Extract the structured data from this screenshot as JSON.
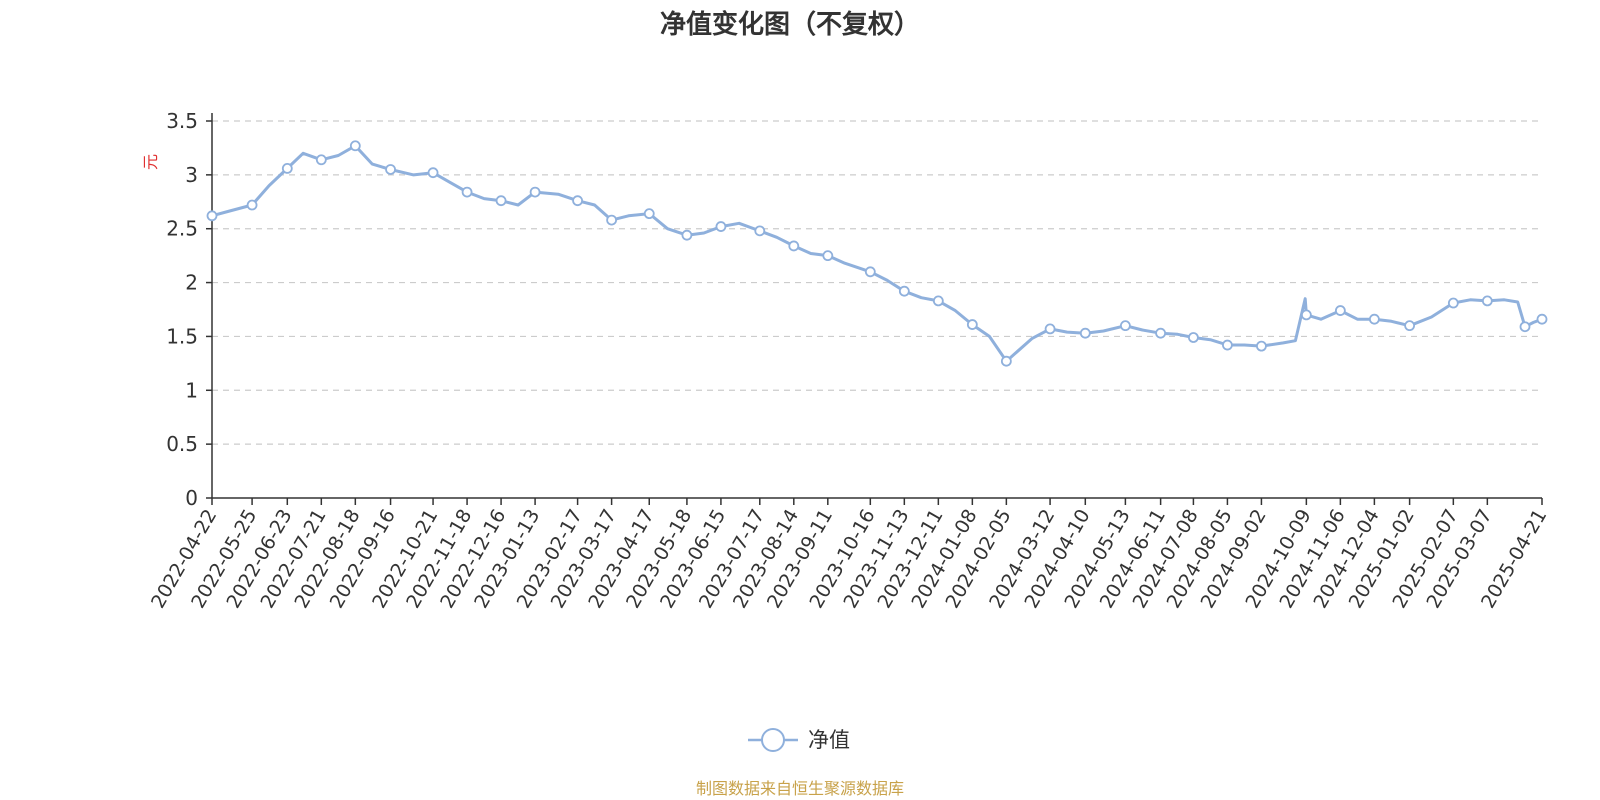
{
  "chart_data": {
    "type": "line",
    "title": "净值变化图（不复权）",
    "ylabel": "元",
    "ylim": [
      0,
      3.5
    ],
    "yticks": [
      "0",
      "0.5",
      "1",
      "1.5",
      "2",
      "2.5",
      "3",
      "3.5"
    ],
    "x_tick_labels": [
      "2022-04-22",
      "2022-05-25",
      "2022-06-23",
      "2022-07-21",
      "2022-08-18",
      "2022-09-16",
      "2022-10-21",
      "2022-11-18",
      "2022-12-16",
      "2023-01-13",
      "2023-02-17",
      "2023-03-17",
      "2023-04-17",
      "2023-05-18",
      "2023-06-15",
      "2023-07-17",
      "2023-08-14",
      "2023-09-11",
      "2023-10-16",
      "2023-11-13",
      "2023-12-11",
      "2024-01-08",
      "2024-02-05",
      "2024-03-12",
      "2024-04-10",
      "2024-05-13",
      "2024-06-11",
      "2024-07-08",
      "2024-08-05",
      "2024-09-02",
      "2024-10-09",
      "2024-11-06",
      "2024-12-04",
      "2025-01-02",
      "2025-02-07",
      "2025-03-07",
      "2025-04-21"
    ],
    "grid": true,
    "legend_position": "bottom-center",
    "series": [
      {
        "name": "净值",
        "color": "#8fb0dc",
        "points": [
          [
            "2022-04-22",
            2.62
          ],
          [
            "2022-05-05",
            2.66
          ],
          [
            "2022-05-25",
            2.72
          ],
          [
            "2022-06-08",
            2.9
          ],
          [
            "2022-06-23",
            3.06
          ],
          [
            "2022-07-06",
            3.2
          ],
          [
            "2022-07-21",
            3.14
          ],
          [
            "2022-08-04",
            3.18
          ],
          [
            "2022-08-18",
            3.27
          ],
          [
            "2022-09-01",
            3.1
          ],
          [
            "2022-09-16",
            3.05
          ],
          [
            "2022-10-05",
            3.0
          ],
          [
            "2022-10-21",
            3.02
          ],
          [
            "2022-11-04",
            2.93
          ],
          [
            "2022-11-18",
            2.84
          ],
          [
            "2022-12-02",
            2.78
          ],
          [
            "2022-12-16",
            2.76
          ],
          [
            "2022-12-30",
            2.72
          ],
          [
            "2023-01-13",
            2.84
          ],
          [
            "2023-02-01",
            2.82
          ],
          [
            "2023-02-17",
            2.76
          ],
          [
            "2023-03-03",
            2.72
          ],
          [
            "2023-03-17",
            2.58
          ],
          [
            "2023-03-31",
            2.62
          ],
          [
            "2023-04-17",
            2.64
          ],
          [
            "2023-05-02",
            2.5
          ],
          [
            "2023-05-18",
            2.44
          ],
          [
            "2023-06-01",
            2.46
          ],
          [
            "2023-06-15",
            2.52
          ],
          [
            "2023-06-30",
            2.55
          ],
          [
            "2023-07-17",
            2.48
          ],
          [
            "2023-07-31",
            2.42
          ],
          [
            "2023-08-14",
            2.34
          ],
          [
            "2023-08-28",
            2.27
          ],
          [
            "2023-09-11",
            2.25
          ],
          [
            "2023-09-25",
            2.18
          ],
          [
            "2023-10-16",
            2.1
          ],
          [
            "2023-10-30",
            2.02
          ],
          [
            "2023-11-13",
            1.92
          ],
          [
            "2023-11-27",
            1.86
          ],
          [
            "2023-12-11",
            1.83
          ],
          [
            "2023-12-25",
            1.74
          ],
          [
            "2024-01-08",
            1.61
          ],
          [
            "2024-01-22",
            1.5
          ],
          [
            "2024-02-05",
            1.27
          ],
          [
            "2024-02-26",
            1.48
          ],
          [
            "2024-03-12",
            1.57
          ],
          [
            "2024-03-26",
            1.54
          ],
          [
            "2024-04-10",
            1.53
          ],
          [
            "2024-04-25",
            1.55
          ],
          [
            "2024-05-13",
            1.6
          ],
          [
            "2024-05-27",
            1.56
          ],
          [
            "2024-06-11",
            1.53
          ],
          [
            "2024-06-25",
            1.52
          ],
          [
            "2024-07-08",
            1.49
          ],
          [
            "2024-07-22",
            1.47
          ],
          [
            "2024-08-05",
            1.42
          ],
          [
            "2024-08-19",
            1.42
          ],
          [
            "2024-09-02",
            1.41
          ],
          [
            "2024-09-20",
            1.44
          ],
          [
            "2024-09-30",
            1.46
          ],
          [
            "2024-10-08",
            1.85
          ],
          [
            "2024-10-09",
            1.7
          ],
          [
            "2024-10-21",
            1.66
          ],
          [
            "2024-11-06",
            1.74
          ],
          [
            "2024-11-20",
            1.66
          ],
          [
            "2024-12-04",
            1.66
          ],
          [
            "2024-12-18",
            1.64
          ],
          [
            "2025-01-02",
            1.6
          ],
          [
            "2025-01-20",
            1.68
          ],
          [
            "2025-02-07",
            1.81
          ],
          [
            "2025-02-21",
            1.84
          ],
          [
            "2025-03-07",
            1.83
          ],
          [
            "2025-03-21",
            1.84
          ],
          [
            "2025-04-01",
            1.82
          ],
          [
            "2025-04-07",
            1.59
          ],
          [
            "2025-04-14",
            1.63
          ],
          [
            "2025-04-21",
            1.66
          ]
        ],
        "marker_dates": [
          "2022-04-22",
          "2022-05-25",
          "2022-06-23",
          "2022-07-21",
          "2022-08-18",
          "2022-09-16",
          "2022-10-21",
          "2022-11-18",
          "2022-12-16",
          "2023-01-13",
          "2023-02-17",
          "2023-03-17",
          "2023-04-17",
          "2023-05-18",
          "2023-06-15",
          "2023-07-17",
          "2023-08-14",
          "2023-09-11",
          "2023-10-16",
          "2023-11-13",
          "2023-12-11",
          "2024-01-08",
          "2024-02-05",
          "2024-03-12",
          "2024-04-10",
          "2024-05-13",
          "2024-06-11",
          "2024-07-08",
          "2024-08-05",
          "2024-09-02",
          "2024-10-09",
          "2024-11-06",
          "2024-12-04",
          "2025-01-02",
          "2025-02-07",
          "2025-03-07",
          "2025-04-07",
          "2025-04-21"
        ]
      }
    ]
  },
  "source_note": "制图数据来自恒生聚源数据库"
}
